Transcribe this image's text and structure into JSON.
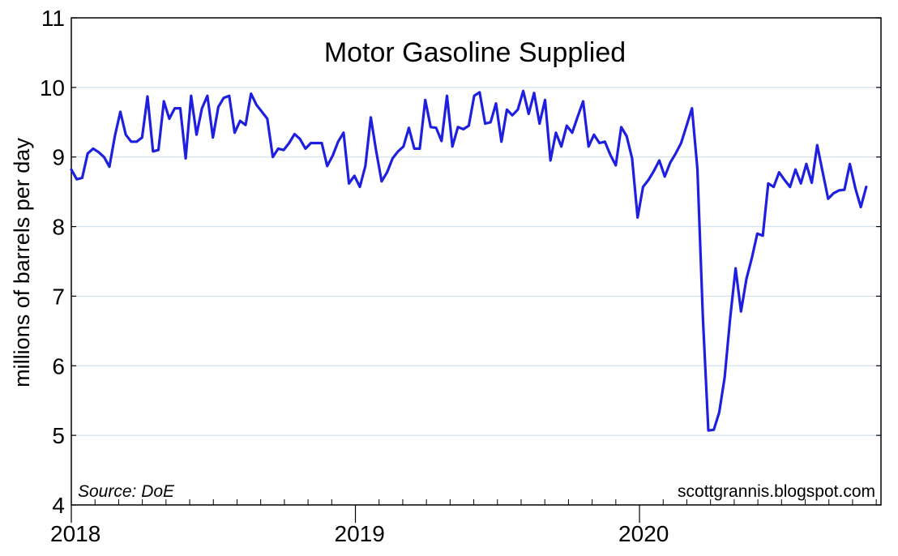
{
  "chart_data": {
    "type": "line",
    "title": "Motor Gasoline Supplied",
    "ylabel": "millions of barrels per day",
    "xlabel": "",
    "source": "Source: DoE",
    "watermark": "scottgrannis.blogspot.com",
    "ylim": [
      4,
      11
    ],
    "yticks": [
      "4",
      "5",
      "6",
      "7",
      "8",
      "9",
      "10",
      "11"
    ],
    "xlim": [
      2018.0,
      2020.85
    ],
    "xticks": [
      {
        "label": "2018",
        "value": 2018
      },
      {
        "label": "2019",
        "value": 2019
      },
      {
        "label": "2020",
        "value": 2020
      }
    ],
    "grid": true,
    "line_color": "#1f1fe0",
    "grid_color": "#c8dcee",
    "series": [
      {
        "x_start": 2018.0,
        "x_step_weeks": 1,
        "values": [
          8.82,
          8.68,
          8.7,
          9.05,
          9.12,
          9.07,
          9.0,
          8.86,
          9.3,
          9.65,
          9.32,
          9.22,
          9.22,
          9.28,
          9.87,
          9.08,
          9.1,
          9.8,
          9.55,
          9.7,
          9.7,
          8.98,
          9.88,
          9.32,
          9.7,
          9.88,
          9.28,
          9.72,
          9.85,
          9.88,
          9.35,
          9.52,
          9.46,
          9.91,
          9.75,
          9.65,
          9.55,
          9.0,
          9.12,
          9.1,
          9.2,
          9.33,
          9.26,
          9.12,
          9.2,
          9.2,
          9.2,
          8.87,
          9.02,
          9.22,
          9.35,
          8.62,
          8.73,
          8.57,
          8.87,
          9.57,
          9.08,
          8.65,
          8.78,
          8.98,
          9.08,
          9.15,
          9.42,
          9.12,
          9.12,
          9.82,
          9.43,
          9.42,
          9.23,
          9.88,
          9.15,
          9.43,
          9.4,
          9.45,
          9.88,
          9.93,
          9.48,
          9.5,
          9.77,
          9.22,
          9.68,
          9.6,
          9.68,
          9.95,
          9.62,
          9.92,
          9.48,
          9.82,
          8.95,
          9.35,
          9.15,
          9.45,
          9.35,
          9.58,
          9.8,
          9.15,
          9.32,
          9.2,
          9.22,
          9.03,
          8.88,
          9.43,
          9.3,
          8.98,
          8.13,
          8.57,
          8.67,
          8.8,
          8.95,
          8.72,
          8.92,
          9.05,
          9.2,
          9.45,
          9.7,
          8.83,
          6.68,
          5.07,
          5.08,
          5.33,
          5.83,
          6.68,
          7.4,
          6.78,
          7.25,
          7.55,
          7.9,
          7.87,
          8.62,
          8.57,
          8.78,
          8.67,
          8.57,
          8.82,
          8.62,
          8.9,
          8.63,
          9.17,
          8.78,
          8.4,
          8.48,
          8.52,
          8.53,
          8.9,
          8.55,
          8.28,
          8.57
        ]
      }
    ]
  }
}
